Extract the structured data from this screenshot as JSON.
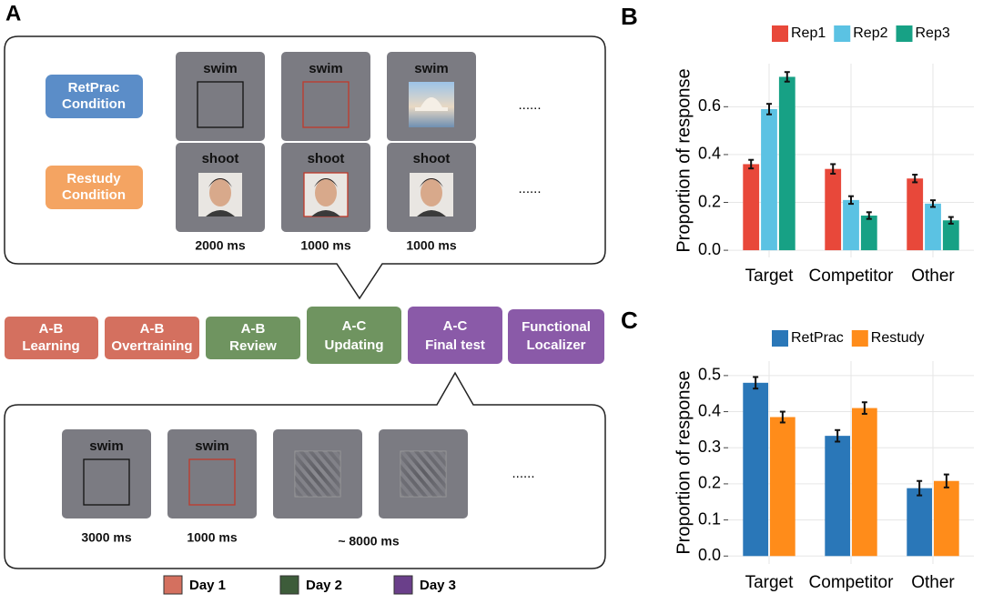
{
  "panel_a": {
    "label": "A",
    "study": {
      "rows": [
        {
          "condition": [
            "RetPrac",
            "Condition"
          ],
          "words": [
            "swim",
            "swim",
            "swim"
          ]
        },
        {
          "condition": [
            "Restudy",
            "Condition"
          ],
          "words": [
            "shoot",
            "shoot",
            "shoot"
          ]
        }
      ],
      "ellipsis": "......",
      "durations": [
        "2000 ms",
        "1000 ms",
        "1000 ms"
      ]
    },
    "stages": [
      [
        "A-B",
        "Learning"
      ],
      [
        "A-B",
        "Overtraining"
      ],
      [
        "A-B",
        "Review"
      ],
      [
        "A-C",
        "Updating"
      ],
      [
        "A-C",
        "Final test"
      ],
      [
        "Functional",
        "Localizer"
      ]
    ],
    "test": {
      "words": [
        "swim",
        "swim"
      ],
      "ellipsis": "......",
      "durations": [
        "3000 ms",
        "1000 ms",
        "~ 8000 ms"
      ]
    },
    "legend": [
      "Day 1",
      "Day 2",
      "Day 3"
    ]
  },
  "chart_data": [
    {
      "type": "bar",
      "panel_label": "B",
      "y_label": "Proportion of response",
      "categories": [
        "Target",
        "Competitor",
        "Other"
      ],
      "series": [
        {
          "name": "Rep1",
          "color": "#e8483a",
          "values": [
            0.36,
            0.34,
            0.3
          ],
          "errors": [
            0.018,
            0.02,
            0.016
          ]
        },
        {
          "name": "Rep2",
          "color": "#5bc2e3",
          "values": [
            0.59,
            0.21,
            0.195
          ],
          "errors": [
            0.022,
            0.016,
            0.014
          ]
        },
        {
          "name": "Rep3",
          "color": "#17a185",
          "values": [
            0.725,
            0.145,
            0.125
          ],
          "errors": [
            0.02,
            0.014,
            0.014
          ]
        }
      ],
      "ylim": [
        -0.03,
        0.78
      ],
      "yticks": [
        {
          "value": 0,
          "label": "0.0"
        },
        0.2,
        0.4,
        0.6
      ],
      "grid": true
    },
    {
      "type": "bar",
      "panel_label": "C",
      "y_label": "Proportion of response",
      "categories": [
        "Target",
        "Competitor",
        "Other"
      ],
      "series": [
        {
          "name": "RetPrac",
          "color": "#2a77b8",
          "values": [
            0.48,
            0.333,
            0.188
          ],
          "errors": [
            0.016,
            0.016,
            0.02
          ]
        },
        {
          "name": "Restudy",
          "color": "#ff8c1a",
          "values": [
            0.385,
            0.41,
            0.208
          ],
          "errors": [
            0.015,
            0.016,
            0.018
          ]
        }
      ],
      "ylim": [
        -0.022,
        0.54
      ],
      "yticks": [
        {
          "value": 0,
          "label": "0.0"
        },
        0.1,
        0.2,
        0.3,
        0.4,
        0.5
      ],
      "grid": true
    }
  ]
}
